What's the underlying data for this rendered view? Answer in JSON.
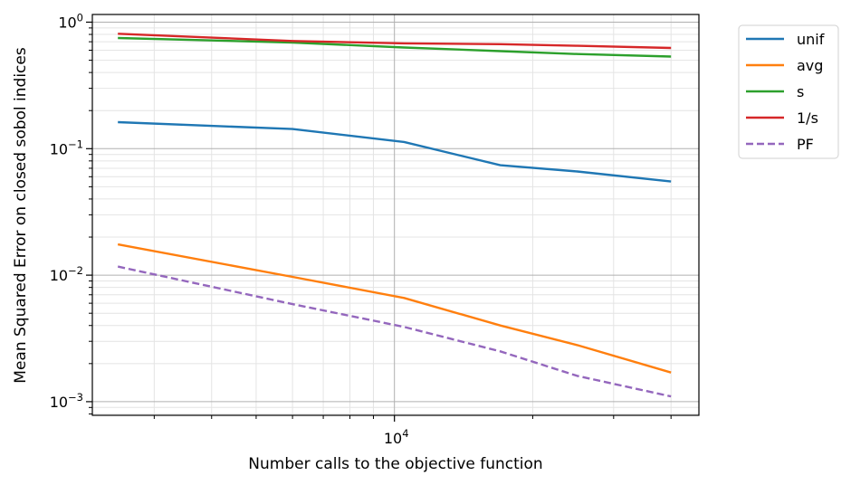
{
  "chart_data": {
    "type": "line",
    "title": "",
    "xlabel": "Number calls to the objective function",
    "ylabel": "Mean Squared Error on closed sobol indices",
    "xscale": "log",
    "yscale": "log",
    "xlim": [
      2200,
      46000
    ],
    "ylim": [
      0.00078,
      1.15
    ],
    "grid": "major and minor",
    "legend_position": "outside top-right",
    "x_tick_labels": [
      {
        "value": 10000,
        "base": "10",
        "exp": "4"
      }
    ],
    "y_tick_labels": [
      {
        "value": 0.001,
        "base": "10",
        "exp": "−3"
      },
      {
        "value": 0.01,
        "base": "10",
        "exp": "−2"
      },
      {
        "value": 0.1,
        "base": "10",
        "exp": "−1"
      },
      {
        "value": 1,
        "base": "10",
        "exp": "0"
      }
    ],
    "series": [
      {
        "name": "unif",
        "color": "#1f77b4",
        "dash": "solid",
        "x": [
          2500,
          6000,
          10500,
          17000,
          25000,
          40000
        ],
        "y": [
          0.162,
          0.143,
          0.113,
          0.074,
          0.066,
          0.055
        ]
      },
      {
        "name": "avg",
        "color": "#ff7f0e",
        "dash": "solid",
        "x": [
          2500,
          6000,
          10500,
          17000,
          25000,
          40000
        ],
        "y": [
          0.0175,
          0.0097,
          0.0066,
          0.004,
          0.0028,
          0.0017
        ]
      },
      {
        "name": "s",
        "color": "#2ca02c",
        "dash": "solid",
        "x": [
          2500,
          6000,
          10500,
          17000,
          25000,
          40000
        ],
        "y": [
          0.75,
          0.69,
          0.63,
          0.59,
          0.56,
          0.535
        ]
      },
      {
        "name": "1/s",
        "color": "#d62728",
        "dash": "solid",
        "x": [
          2500,
          6000,
          10500,
          17000,
          25000,
          40000
        ],
        "y": [
          0.81,
          0.71,
          0.68,
          0.67,
          0.65,
          0.625
        ]
      },
      {
        "name": "PF",
        "color": "#9467bd",
        "dash": "dashed",
        "x": [
          2500,
          6000,
          10500,
          17000,
          25000,
          40000
        ],
        "y": [
          0.0117,
          0.0059,
          0.0039,
          0.0025,
          0.0016,
          0.0011
        ]
      }
    ]
  }
}
